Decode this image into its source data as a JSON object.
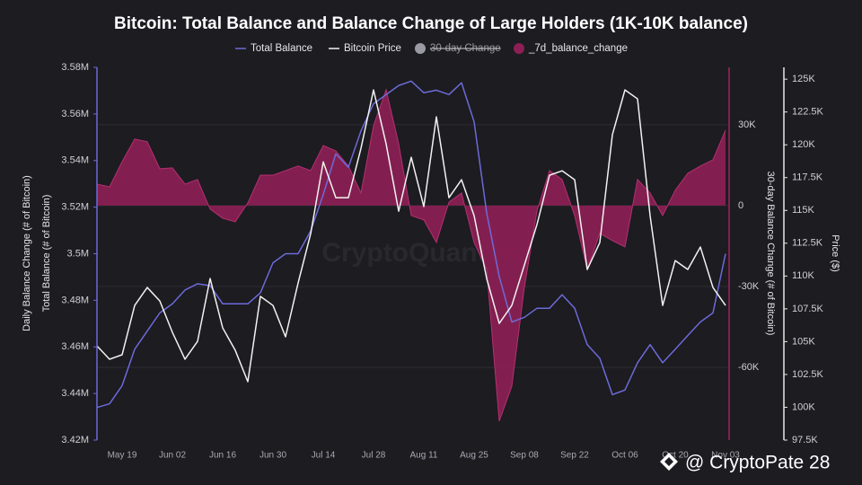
{
  "chart_data": {
    "type": "line",
    "title": "Bitcoin: Total Balance and Balance Change of Large Holders (1K-10K balance)",
    "watermark": "CryptoQuant",
    "overlay_text": "@ CryptoPate 28",
    "ylabels": [
      "Daily Balance Change (# of Bitcoin)",
      "Total Balance (# of Bitcoin)"
    ],
    "y2label": "30-day Balance Change (# of Bitcoin)",
    "y3label": "Price ($)",
    "grid": true,
    "categories": [
      null,
      null,
      "May 19",
      null,
      null,
      null,
      "Jun 02",
      null,
      null,
      null,
      "Jun 16",
      null,
      null,
      null,
      "Jun 30",
      null,
      null,
      null,
      "Jul 14",
      null,
      null,
      null,
      "Jul 28",
      null,
      null,
      null,
      "Aug 11",
      null,
      null,
      null,
      "Aug 25",
      null,
      null,
      null,
      "Sep 08",
      null,
      null,
      null,
      "Sep 22",
      null,
      null,
      null,
      "Oct 06",
      null,
      null,
      null,
      "Oct 20",
      null,
      null,
      null,
      "Nov 03"
    ],
    "ylim": [
      3420000,
      3580000
    ],
    "yticks": [
      {
        "value": 3420000,
        "label": "3.42M"
      },
      {
        "value": 3440000,
        "label": "3.44M"
      },
      {
        "value": 3460000,
        "label": "3.46M"
      },
      {
        "value": 3480000,
        "label": "3.48M"
      },
      {
        "value": 3500000,
        "label": "3.5M"
      },
      {
        "value": 3520000,
        "label": "3.52M"
      },
      {
        "value": 3540000,
        "label": "3.54M"
      },
      {
        "value": 3560000,
        "label": "3.56M"
      },
      {
        "value": 3580000,
        "label": "3.58M"
      }
    ],
    "y2lim": [
      -87000,
      51300
    ],
    "y2ticks": [
      {
        "value": 30000,
        "label": "30K"
      },
      0,
      {
        "value": -30000,
        "label": "-30K"
      },
      {
        "value": -60000,
        "label": "-60K"
      }
    ],
    "y3lim": [
      97500,
      125900
    ],
    "y3ticks": [
      {
        "value": 97500,
        "label": "97.5K"
      },
      {
        "value": 100000,
        "label": "100K"
      },
      {
        "value": 102500,
        "label": "102.5K"
      },
      {
        "value": 105000,
        "label": "105K"
      },
      {
        "value": 107500,
        "label": "107.5K"
      },
      {
        "value": 110000,
        "label": "110K"
      },
      {
        "value": 112500,
        "label": "112.5K"
      },
      {
        "value": 115000,
        "label": "115K"
      },
      {
        "value": 117500,
        "label": "117.5K"
      },
      {
        "value": 120000,
        "label": "120K"
      },
      {
        "value": 122500,
        "label": "122.5K"
      },
      {
        "value": 125000,
        "label": "125K"
      }
    ],
    "series": [
      {
        "name": "Total Balance",
        "type": "line",
        "axis": "y",
        "color": "#6d6ad8",
        "values": [
          3434000,
          3435600,
          3443400,
          3459000,
          3466800,
          3474600,
          3478500,
          3484400,
          3487100,
          3486300,
          3478500,
          3478500,
          3478500,
          3483200,
          3496100,
          3500000,
          3500000,
          3509800,
          3525400,
          3542900,
          3537100,
          3552700,
          3564400,
          3568300,
          3572200,
          3574100,
          3569100,
          3570200,
          3568300,
          3573400,
          3556600,
          3517600,
          3490200,
          3470700,
          3472700,
          3476600,
          3476600,
          3482400,
          3476600,
          3461000,
          3455100,
          3439500,
          3441500,
          3453200,
          3461000,
          3453200,
          3459000,
          3464900,
          3470700,
          3474600,
          3500000
        ]
      },
      {
        "name": "Bitcoin Price",
        "type": "line",
        "axis": "y3",
        "color": "#f2f2f2",
        "values": [
          104680,
          103660,
          104000,
          107760,
          109130,
          108100,
          105710,
          103660,
          105020,
          109810,
          106050,
          104340,
          101950,
          108450,
          107760,
          105370,
          109470,
          113230,
          118700,
          115970,
          115970,
          119730,
          124180,
          120070,
          114940,
          119050,
          115290,
          122130,
          115970,
          117340,
          114600,
          109810,
          106390,
          107760,
          110840,
          113920,
          117680,
          118020,
          117340,
          110500,
          112550,
          120760,
          124180,
          123500,
          114600,
          107760,
          111180,
          110500,
          112210,
          109130,
          107760
        ]
      },
      {
        "name": "30-day Change",
        "type": "area",
        "axis": "y2",
        "color": "#9a9aa2",
        "hidden": true
      },
      {
        "name": "_7d_balance_change",
        "type": "area",
        "axis": "y2",
        "color": "#8c1f55",
        "values": [
          8000,
          7000,
          16300,
          24700,
          23700,
          13700,
          14000,
          8000,
          9700,
          -1300,
          -4700,
          -6000,
          1000,
          11300,
          11300,
          13000,
          14700,
          13000,
          22300,
          20300,
          14700,
          4700,
          29700,
          43000,
          23000,
          -3700,
          -5300,
          -13700,
          1300,
          4700,
          -13700,
          -23700,
          -80000,
          -67000,
          -30300,
          -2000,
          13000,
          9700,
          -3700,
          -23700,
          -10300,
          -13000,
          -15300,
          9700,
          4700,
          -3700,
          5700,
          12000,
          14700,
          17000,
          28000
        ]
      }
    ]
  }
}
